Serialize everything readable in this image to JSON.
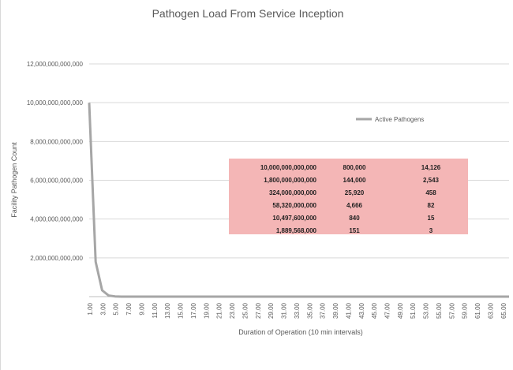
{
  "chart_data": {
    "type": "line",
    "title": "Pathogen Load From Service Inception",
    "xlabel": "Duration of Operation (10 min intervals)",
    "ylabel": "Facility Pathogen Count",
    "ylim": [
      0,
      12000000000000
    ],
    "y_ticks": [
      0,
      2000000000000,
      4000000000000,
      6000000000000,
      8000000000000,
      10000000000000,
      12000000000000
    ],
    "y_tick_labels": [
      "",
      "2,000,000,000,000",
      "4,000,000,000,000",
      "6,000,000,000,000",
      "8,000,000,000,000",
      "10,000,000,000,000",
      "12,000,000,000,000"
    ],
    "x_tick_labels": [
      "1.00",
      "3.00",
      "5.00",
      "7.00",
      "9.00",
      "11.00",
      "13.00",
      "15.00",
      "17.00",
      "19.00",
      "21.00",
      "23.00",
      "25.00",
      "27.00",
      "29.00",
      "31.00",
      "33.00",
      "35.00",
      "37.00",
      "39.00",
      "41.00",
      "43.00",
      "45.00",
      "47.00",
      "49.00",
      "51.00",
      "53.00",
      "55.00",
      "57.00",
      "59.00",
      "61.00",
      "63.00",
      "65.00"
    ],
    "x_range": [
      1,
      66
    ],
    "grid": true,
    "legend_position": "top-right",
    "series": [
      {
        "name": "Active Pathogens",
        "color": "#a6a6a6",
        "x": [
          1,
          2,
          3,
          4,
          5,
          6,
          7,
          8,
          9,
          10,
          15,
          20,
          30,
          40,
          50,
          60,
          66
        ],
        "y": [
          10000000000000,
          1800000000000,
          324000000000,
          58320000000,
          10497600000,
          1889568000,
          340122240,
          61222003,
          11019960,
          1983593,
          0,
          0,
          0,
          0,
          0,
          0,
          0
        ]
      }
    ],
    "table_overlay": {
      "background": "#f4b6b6",
      "rows": [
        [
          "10,000,000,000,000",
          "800,000",
          "14,126"
        ],
        [
          "1,800,000,000,000",
          "144,000",
          "2,543"
        ],
        [
          "324,000,000,000",
          "25,920",
          "458"
        ],
        [
          "58,320,000,000",
          "4,666",
          "82"
        ],
        [
          "10,497,600,000",
          "840",
          "15"
        ],
        [
          "1,889,568,000",
          "151",
          "3"
        ]
      ]
    }
  }
}
